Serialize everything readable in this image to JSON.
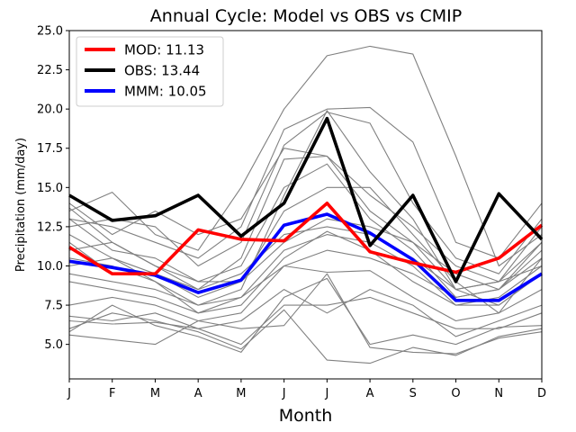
{
  "chart_data": {
    "type": "line",
    "title": "Annual Cycle: Model vs OBS vs CMIP",
    "xlabel": "Month",
    "ylabel": "Precipitation (mm/day)",
    "categories": [
      "J",
      "F",
      "M",
      "A",
      "M",
      "J",
      "J",
      "A",
      "S",
      "O",
      "N",
      "D"
    ],
    "ylim": [
      2.8,
      25.0
    ],
    "yticks": [
      5.0,
      7.5,
      10.0,
      12.5,
      15.0,
      17.5,
      20.0,
      22.5,
      25.0
    ],
    "ytick_labels": [
      "5.0",
      "7.5",
      "10.0",
      "12.5",
      "15.0",
      "17.5",
      "20.0",
      "22.5",
      "25.0"
    ],
    "legend_position": "top-left",
    "colors": {
      "mod": "#ff0000",
      "obs": "#000000",
      "mmm": "#0000ff",
      "cmip": "#808080"
    },
    "series": [
      {
        "key": "mod",
        "name": "MOD: 11.13",
        "values": [
          11.2,
          9.5,
          9.5,
          12.3,
          11.7,
          11.6,
          14.0,
          10.9,
          10.2,
          9.6,
          10.5,
          12.6
        ]
      },
      {
        "key": "obs",
        "name": "OBS: 13.44",
        "values": [
          14.5,
          12.9,
          13.2,
          14.5,
          11.9,
          14.0,
          19.4,
          11.3,
          14.5,
          9.0,
          14.6,
          11.7
        ]
      },
      {
        "key": "mmm",
        "name": "MMM: 10.05",
        "values": [
          10.3,
          9.9,
          9.4,
          8.3,
          9.1,
          12.6,
          13.3,
          12.1,
          10.4,
          7.8,
          7.8,
          9.5
        ]
      }
    ],
    "cmip_series": [
      [
        13.5,
        14.7,
        12.0,
        11.0,
        15.0,
        20.0,
        23.4,
        24.0,
        23.5,
        17.0,
        10.0,
        12.0
      ],
      [
        13.0,
        12.5,
        11.5,
        10.5,
        12.5,
        18.7,
        20.0,
        20.1,
        17.9,
        11.5,
        10.5,
        14.0
      ],
      [
        12.5,
        13.0,
        12.5,
        10.0,
        11.5,
        17.7,
        19.8,
        19.1,
        14.0,
        10.5,
        9.5,
        13.0
      ],
      [
        14.0,
        12.0,
        13.5,
        12.0,
        13.0,
        17.5,
        17.0,
        14.5,
        12.5,
        10.0,
        9.0,
        12.5
      ],
      [
        13.7,
        11.5,
        10.0,
        8.5,
        10.5,
        16.8,
        17.0,
        13.5,
        11.5,
        9.5,
        8.5,
        11.0
      ],
      [
        12.0,
        10.5,
        9.0,
        7.5,
        8.5,
        14.5,
        19.9,
        16.0,
        13.0,
        8.5,
        7.5,
        9.5
      ],
      [
        11.5,
        9.5,
        9.5,
        8.0,
        9.0,
        13.5,
        15.0,
        15.0,
        12.0,
        9.0,
        7.0,
        10.5
      ],
      [
        13.0,
        11.0,
        10.5,
        9.0,
        10.0,
        15.0,
        16.5,
        13.0,
        11.0,
        8.0,
        8.5,
        11.5
      ],
      [
        10.5,
        10.0,
        9.0,
        7.0,
        8.0,
        11.0,
        12.0,
        11.5,
        10.0,
        7.5,
        8.0,
        10.0
      ],
      [
        9.5,
        9.0,
        8.5,
        7.5,
        8.0,
        10.0,
        11.0,
        10.5,
        9.5,
        8.0,
        8.5,
        10.5
      ],
      [
        10.0,
        10.5,
        9.5,
        8.5,
        9.5,
        12.0,
        12.5,
        12.0,
        10.5,
        8.5,
        9.0,
        10.0
      ],
      [
        9.0,
        8.5,
        8.0,
        7.0,
        7.5,
        10.5,
        12.2,
        11.0,
        9.0,
        7.5,
        7.5,
        9.5
      ],
      [
        11.0,
        11.5,
        10.0,
        9.0,
        9.0,
        11.5,
        13.0,
        12.5,
        11.5,
        8.5,
        9.0,
        11.5
      ],
      [
        7.5,
        8.0,
        7.5,
        6.5,
        7.0,
        10.0,
        9.6,
        9.7,
        8.0,
        6.5,
        7.0,
        8.5
      ],
      [
        6.8,
        6.5,
        7.0,
        6.0,
        6.5,
        8.5,
        7.0,
        8.5,
        7.5,
        5.5,
        6.5,
        7.5
      ],
      [
        6.5,
        6.3,
        6.4,
        6.0,
        5.0,
        7.5,
        7.5,
        8.0,
        7.0,
        6.0,
        6.0,
        7.0
      ],
      [
        6.0,
        7.0,
        6.5,
        5.8,
        4.7,
        7.2,
        4.0,
        3.8,
        4.8,
        4.3,
        5.5,
        6.0
      ],
      [
        5.6,
        5.3,
        5.0,
        6.5,
        6.0,
        6.2,
        9.5,
        4.8,
        4.5,
        4.4,
        5.4,
        5.8
      ],
      [
        5.8,
        7.5,
        6.2,
        5.5,
        4.5,
        8.0,
        9.2,
        5.0,
        5.6,
        5.0,
        6.1,
        6.2
      ]
    ]
  }
}
